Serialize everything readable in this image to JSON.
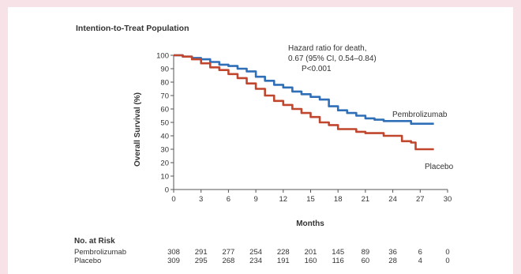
{
  "colors": {
    "background": "#f7e2e7",
    "panel": "#ffffff",
    "pembrolizumab": "#2f6fb8",
    "placebo": "#c0462e",
    "text": "#333333"
  },
  "chart_data": {
    "type": "line",
    "title": "Intention-to-Treat Population",
    "xlabel": "Months",
    "ylabel": "Overall Survival (%)",
    "xlim": [
      0,
      30
    ],
    "ylim": [
      0,
      100
    ],
    "x_ticks": [
      0,
      3,
      6,
      9,
      12,
      15,
      18,
      21,
      24,
      27,
      30
    ],
    "y_ticks": [
      0,
      10,
      20,
      30,
      40,
      50,
      60,
      70,
      80,
      90,
      100
    ],
    "grid": false,
    "annotation": [
      "Hazard ratio for death,",
      "0.67 (95% CI, 0.54–0.84)",
      "P<0.001"
    ],
    "series": [
      {
        "name": "Pembrolizumab",
        "x": [
          0,
          1,
          2,
          3,
          4,
          5,
          6,
          7,
          8,
          9,
          10,
          11,
          12,
          13,
          14,
          15,
          16,
          17,
          18,
          19,
          20,
          21,
          22,
          23,
          24,
          25,
          26,
          27,
          28.5
        ],
        "y": [
          100,
          99,
          98,
          97,
          95,
          93,
          92,
          90,
          88,
          84,
          81,
          78,
          76,
          73,
          71,
          69,
          67,
          62,
          59,
          57,
          55,
          53,
          52,
          51,
          51,
          51,
          49,
          49,
          49
        ]
      },
      {
        "name": "Placebo",
        "x": [
          0,
          1,
          2,
          3,
          4,
          5,
          6,
          7,
          8,
          9,
          10,
          11,
          12,
          13,
          14,
          15,
          16,
          17,
          18,
          19,
          20,
          21,
          22,
          23,
          24,
          25,
          26,
          26.5,
          27,
          28.5
        ],
        "y": [
          100,
          99,
          97,
          94,
          91,
          89,
          86,
          83,
          79,
          75,
          70,
          66,
          63,
          60,
          57,
          54,
          50,
          48,
          45,
          45,
          43,
          42,
          42,
          40,
          40,
          36,
          35,
          30,
          30,
          30
        ]
      }
    ],
    "risk_table": {
      "title": "No. at Risk",
      "rows": [
        {
          "label": "Pembrolizumab",
          "values": [
            "308",
            "291",
            "277",
            "254",
            "228",
            "201",
            "145",
            "89",
            "36",
            "6",
            "0"
          ]
        },
        {
          "label": "Placebo",
          "values": [
            "309",
            "295",
            "268",
            "234",
            "191",
            "160",
            "116",
            "60",
            "28",
            "4",
            "0"
          ]
        }
      ]
    }
  }
}
